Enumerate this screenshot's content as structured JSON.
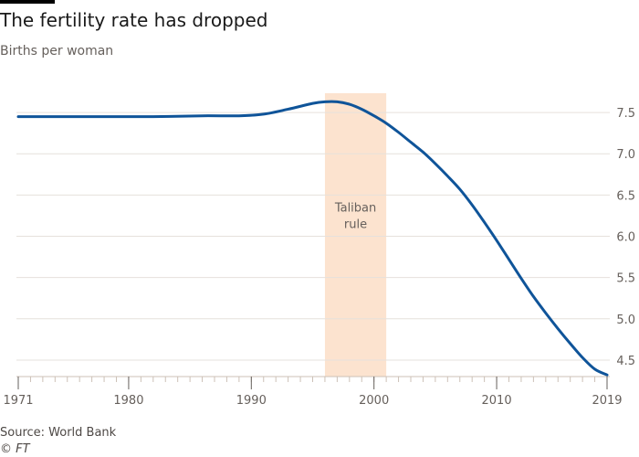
{
  "header": {
    "title": "The fertility rate has dropped",
    "subtitle": "Births per woman"
  },
  "footer": {
    "source": "Source: World Bank",
    "credit": "© FT"
  },
  "chart_data": {
    "type": "line",
    "title": "The fertility rate has dropped",
    "subtitle": "Births per woman",
    "xlabel": "",
    "ylabel": "",
    "xlim": [
      1971,
      2019
    ],
    "ylim": [
      4.3,
      7.8
    ],
    "x_ticks": [
      {
        "value": 1971,
        "label": "1971"
      },
      {
        "value": 1980,
        "label": "1980"
      },
      {
        "value": 1990,
        "label": "1990"
      },
      {
        "value": 2000,
        "label": "2000"
      },
      {
        "value": 2010,
        "label": "2010"
      },
      {
        "value": 2019,
        "label": "2019"
      }
    ],
    "y_ticks": [
      {
        "value": 4.5,
        "label": "4.5"
      },
      {
        "value": 5.0,
        "label": "5.0"
      },
      {
        "value": 5.5,
        "label": "5.5"
      },
      {
        "value": 6.0,
        "label": "6.0"
      },
      {
        "value": 6.5,
        "label": "6.5"
      },
      {
        "value": 7.0,
        "label": "7.0"
      },
      {
        "value": 7.5,
        "label": "7.5"
      }
    ],
    "y_axis_side": "right",
    "grid": "horizontal",
    "series": [
      {
        "name": "",
        "color": "#0f5499",
        "points": [
          [
            1971,
            7.45
          ],
          [
            1974,
            7.45
          ],
          [
            1978,
            7.45
          ],
          [
            1982,
            7.45
          ],
          [
            1986,
            7.46
          ],
          [
            1989,
            7.46
          ],
          [
            1991,
            7.48
          ],
          [
            1993,
            7.54
          ],
          [
            1995,
            7.61
          ],
          [
            1996,
            7.63
          ],
          [
            1997,
            7.63
          ],
          [
            1998,
            7.6
          ],
          [
            1999,
            7.54
          ],
          [
            2000,
            7.46
          ],
          [
            2001,
            7.37
          ],
          [
            2002,
            7.26
          ],
          [
            2003,
            7.14
          ],
          [
            2004,
            7.02
          ],
          [
            2005,
            6.88
          ],
          [
            2006,
            6.73
          ],
          [
            2007,
            6.57
          ],
          [
            2008,
            6.38
          ],
          [
            2009,
            6.17
          ],
          [
            2010,
            5.95
          ],
          [
            2011,
            5.72
          ],
          [
            2012,
            5.49
          ],
          [
            2013,
            5.27
          ],
          [
            2014,
            5.07
          ],
          [
            2015,
            4.88
          ],
          [
            2016,
            4.7
          ],
          [
            2017,
            4.53
          ],
          [
            2018,
            4.39
          ],
          [
            2019,
            4.32
          ]
        ]
      }
    ],
    "annotations": [
      {
        "type": "x-band",
        "x_start": 1996,
        "x_end": 2001,
        "color": "#fce3cf",
        "label_lines": [
          "Taliban",
          "rule"
        ]
      }
    ]
  }
}
